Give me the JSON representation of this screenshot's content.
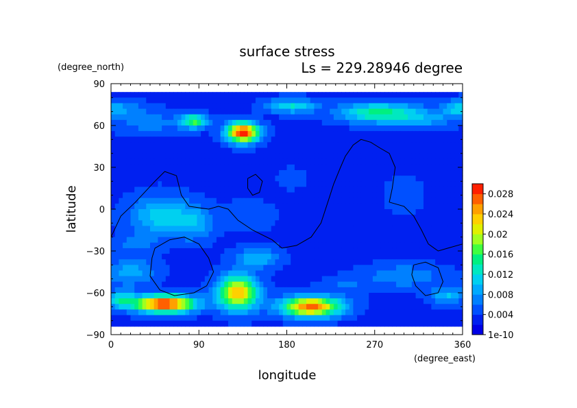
{
  "chart_data": {
    "type": "heatmap",
    "title": "surface stress",
    "subtitle": "Ls = 229.28946 degree",
    "xlabel": "longitude",
    "ylabel": "latitude",
    "x_units": "(degree_east)",
    "y_units": "(degree_north)",
    "xlim": [
      0,
      360
    ],
    "ylim": [
      -90,
      90
    ],
    "x_ticks": [
      0,
      90,
      180,
      270,
      360
    ],
    "y_ticks": [
      90,
      60,
      30,
      0,
      -30,
      -60,
      -90
    ],
    "grid": false,
    "colorbar": {
      "placement": "right",
      "min": 1e-10,
      "max": 0.03,
      "tick_labels": [
        "0.028",
        "0.024",
        "0.02",
        "0.016",
        "0.012",
        "0.008",
        "0.004",
        "1e-10"
      ],
      "tick_values": [
        0.028,
        0.024,
        0.02,
        0.016,
        0.012,
        0.008,
        0.004,
        0
      ],
      "levels": 15,
      "colors": [
        "#0000e6",
        "#0020f0",
        "#0050ff",
        "#0080ff",
        "#00aaff",
        "#00d0f0",
        "#00e8c0",
        "#00f080",
        "#40ff40",
        "#a0ff20",
        "#e0f000",
        "#ffd000",
        "#ffa000",
        "#ff6000",
        "#ff2000"
      ]
    },
    "background_value": 0.0035,
    "blobs": [
      {
        "lon": 0,
        "lat": 72,
        "value": 0.009,
        "rlon": 30,
        "rlat": 6
      },
      {
        "lon": 360,
        "lat": 72,
        "value": 0.012,
        "rlon": 20,
        "rlat": 6
      },
      {
        "lon": 40,
        "lat": 62,
        "value": 0.007,
        "rlon": 35,
        "rlat": 8
      },
      {
        "lon": 85,
        "lat": 63,
        "value": 0.016,
        "rlon": 14,
        "rlat": 5
      },
      {
        "lon": 135,
        "lat": 55,
        "value": 0.03,
        "rlon": 16,
        "rlat": 7
      },
      {
        "lon": 185,
        "lat": 74,
        "value": 0.012,
        "rlon": 25,
        "rlat": 5
      },
      {
        "lon": 275,
        "lat": 69,
        "value": 0.015,
        "rlon": 40,
        "rlat": 7
      },
      {
        "lon": 320,
        "lat": 64,
        "value": 0.008,
        "rlon": 30,
        "rlat": 6
      },
      {
        "lon": 50,
        "lat": -5,
        "value": 0.011,
        "rlon": 30,
        "rlat": 14
      },
      {
        "lon": 85,
        "lat": -10,
        "value": 0.009,
        "rlon": 20,
        "rlat": 12
      },
      {
        "lon": 25,
        "lat": -25,
        "value": 0.007,
        "rlon": 20,
        "rlat": 6
      },
      {
        "lon": 140,
        "lat": -5,
        "value": 0.006,
        "rlon": 25,
        "rlat": 10
      },
      {
        "lon": 20,
        "lat": -45,
        "value": 0.009,
        "rlon": 25,
        "rlat": 10
      },
      {
        "lon": 55,
        "lat": -68,
        "value": 0.03,
        "rlon": 30,
        "rlat": 6
      },
      {
        "lon": 10,
        "lat": -65,
        "value": 0.012,
        "rlon": 15,
        "rlat": 6
      },
      {
        "lon": 130,
        "lat": -60,
        "value": 0.024,
        "rlon": 20,
        "rlat": 12
      },
      {
        "lon": 205,
        "lat": -70,
        "value": 0.027,
        "rlon": 30,
        "rlat": 7
      },
      {
        "lon": 150,
        "lat": -35,
        "value": 0.01,
        "rlon": 22,
        "rlat": 7
      },
      {
        "lon": 300,
        "lat": -48,
        "value": 0.008,
        "rlon": 40,
        "rlat": 8
      },
      {
        "lon": 345,
        "lat": -62,
        "value": 0.01,
        "rlon": 18,
        "rlat": 6
      },
      {
        "lon": 240,
        "lat": -55,
        "value": 0.006,
        "rlon": 25,
        "rlat": 6
      },
      {
        "lon": 300,
        "lat": 10,
        "value": 0.005,
        "rlon": 20,
        "rlat": 15
      },
      {
        "lon": 185,
        "lat": 22,
        "value": 0.0045,
        "rlon": 20,
        "rlat": 10
      }
    ],
    "contours": [
      [
        [
          0,
          -20
        ],
        [
          10,
          -5
        ],
        [
          25,
          5
        ],
        [
          45,
          20
        ],
        [
          55,
          27
        ],
        [
          67,
          24
        ],
        [
          72,
          10
        ],
        [
          80,
          2
        ],
        [
          100,
          0
        ],
        [
          110,
          2
        ],
        [
          120,
          0
        ],
        [
          130,
          -8
        ],
        [
          145,
          -15
        ],
        [
          165,
          -22
        ],
        [
          175,
          -28
        ],
        [
          190,
          -26
        ],
        [
          205,
          -20
        ],
        [
          215,
          -10
        ],
        [
          222,
          5
        ],
        [
          228,
          18
        ],
        [
          235,
          30
        ],
        [
          240,
          38
        ],
        [
          248,
          46
        ],
        [
          256,
          50
        ],
        [
          266,
          48
        ],
        [
          275,
          44
        ],
        [
          285,
          40
        ],
        [
          291,
          30
        ],
        [
          288,
          15
        ],
        [
          285,
          5
        ],
        [
          300,
          2
        ],
        [
          310,
          -5
        ],
        [
          318,
          -15
        ],
        [
          325,
          -25
        ],
        [
          335,
          -30
        ],
        [
          345,
          -28
        ],
        [
          360,
          -25
        ]
      ],
      [
        [
          45,
          -28
        ],
        [
          60,
          -22
        ],
        [
          75,
          -20
        ],
        [
          90,
          -25
        ],
        [
          100,
          -35
        ],
        [
          105,
          -45
        ],
        [
          98,
          -55
        ],
        [
          85,
          -60
        ],
        [
          65,
          -62
        ],
        [
          50,
          -58
        ],
        [
          40,
          -48
        ],
        [
          42,
          -35
        ],
        [
          45,
          -28
        ]
      ],
      [
        [
          140,
          22
        ],
        [
          148,
          25
        ],
        [
          155,
          20
        ],
        [
          152,
          12
        ],
        [
          145,
          10
        ],
        [
          140,
          15
        ],
        [
          140,
          22
        ]
      ],
      [
        [
          310,
          -40
        ],
        [
          322,
          -38
        ],
        [
          335,
          -42
        ],
        [
          340,
          -52
        ],
        [
          335,
          -60
        ],
        [
          322,
          -62
        ],
        [
          312,
          -55
        ],
        [
          308,
          -47
        ],
        [
          310,
          -40
        ]
      ]
    ]
  }
}
